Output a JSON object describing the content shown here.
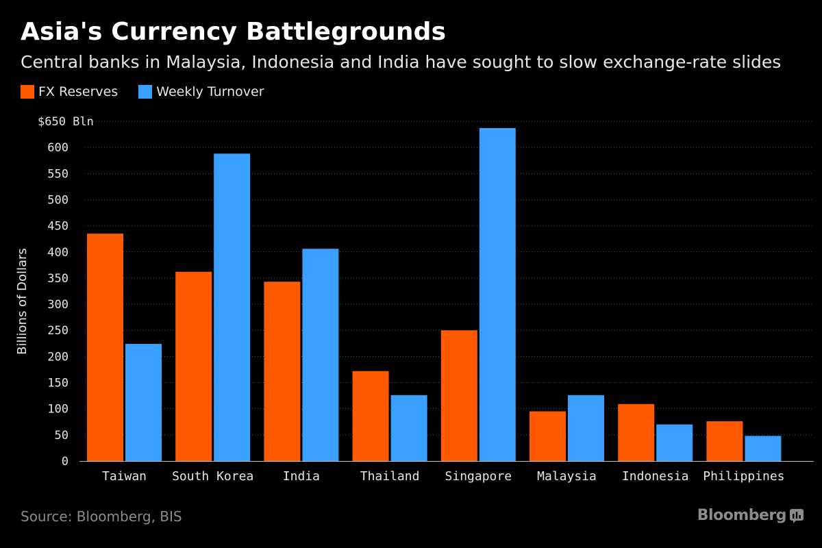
{
  "header": {
    "title": "Asia's Currency Battlegrounds",
    "subtitle": "Central banks in Malaysia, Indonesia and India have sought to slow exchange-rate slides"
  },
  "legend": {
    "items": [
      {
        "label": "FX Reserves",
        "color": "#ff5a00"
      },
      {
        "label": "Weekly Turnover",
        "color": "#3aa0ff"
      }
    ]
  },
  "footer": {
    "source": "Source: Bloomberg, BIS",
    "logo": "Bloomberg"
  },
  "chart_data": {
    "type": "bar",
    "title": "Asia's Currency Battlegrounds",
    "xlabel": "",
    "ylabel": "Billions of Dollars",
    "ylim": [
      0,
      650
    ],
    "yticks": [
      0,
      50,
      100,
      150,
      200,
      250,
      300,
      350,
      400,
      450,
      500,
      550,
      600,
      650
    ],
    "top_tick_label": "$650 Bln",
    "grid": true,
    "categories": [
      "Taiwan",
      "South Korea",
      "India",
      "Thailand",
      "Singapore",
      "Malaysia",
      "Indonesia",
      "Philippines"
    ],
    "series": [
      {
        "name": "FX Reserves",
        "color": "#ff5a00",
        "values": [
          435,
          362,
          343,
          172,
          250,
          95,
          109,
          76
        ]
      },
      {
        "name": "Weekly Turnover",
        "color": "#3aa0ff",
        "values": [
          224,
          588,
          406,
          126,
          637,
          126,
          70,
          48
        ]
      }
    ]
  }
}
